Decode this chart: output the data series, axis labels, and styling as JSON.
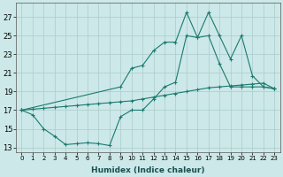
{
  "xlabel": "Humidex (Indice chaleur)",
  "bg_color": "#cce8e8",
  "line_color": "#1a7a6e",
  "grid_color": "#aacccc",
  "ylim": [
    12.5,
    28.5
  ],
  "yticks": [
    13,
    15,
    17,
    19,
    21,
    23,
    25,
    27
  ],
  "xlim": [
    -0.5,
    23.5
  ],
  "xtick_labels": [
    "0",
    "1",
    "2",
    "3",
    "4",
    "5",
    "6",
    "7",
    "8",
    "9",
    "10",
    "11",
    "12",
    "13",
    "14",
    "15",
    "16",
    "17",
    "18",
    "19",
    "20",
    "21",
    "22",
    "23"
  ],
  "s1_x": [
    0,
    1,
    2,
    3,
    4,
    5,
    6,
    7,
    8,
    9,
    10,
    11,
    12,
    13,
    14,
    15,
    16,
    17,
    18,
    19,
    20,
    21,
    22,
    23
  ],
  "s1_y": [
    17.0,
    16.5,
    15.0,
    14.2,
    13.3,
    13.4,
    13.5,
    13.4,
    13.2,
    16.3,
    17.0,
    17.0,
    18.2,
    19.5,
    20.0,
    25.0,
    24.8,
    25.0,
    22.0,
    19.5,
    19.5,
    19.5,
    19.5,
    19.3
  ],
  "s2_x": [
    0,
    9,
    10,
    11,
    12,
    13,
    14,
    15,
    16,
    17,
    18,
    19,
    20,
    21,
    22,
    23
  ],
  "s2_y": [
    17.0,
    19.5,
    21.5,
    21.8,
    23.4,
    24.3,
    24.3,
    27.5,
    24.8,
    27.5,
    25.0,
    22.5,
    25.0,
    20.7,
    19.5,
    19.3
  ],
  "s3_x": [
    0,
    1,
    2,
    3,
    4,
    5,
    6,
    7,
    8,
    9,
    10,
    11,
    12,
    13,
    14,
    15,
    16,
    17,
    18,
    19,
    20,
    21,
    22,
    23
  ],
  "s3_y": [
    17.0,
    17.1,
    17.2,
    17.3,
    17.4,
    17.5,
    17.6,
    17.7,
    17.8,
    17.9,
    18.0,
    18.2,
    18.4,
    18.6,
    18.8,
    19.0,
    19.2,
    19.4,
    19.5,
    19.6,
    19.7,
    19.8,
    19.9,
    19.3
  ]
}
